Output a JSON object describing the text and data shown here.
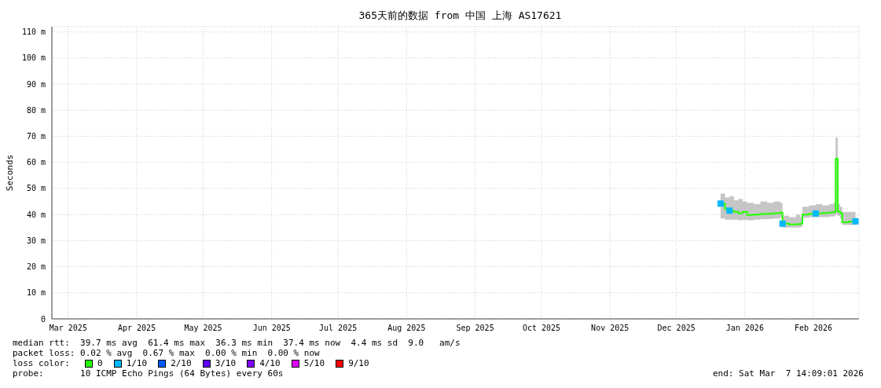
{
  "chart_data": {
    "type": "line",
    "title": "365天前的数据 from 中国 上海 AS17621",
    "ylabel": "Seconds",
    "xlim": [
      "2025-03-07T14:09",
      "2026-03-07T14:09"
    ],
    "xticks": [
      {
        "value": "2025-03-15",
        "label": "Mar 2025"
      },
      {
        "value": "2025-04-15",
        "label": "Apr 2025"
      },
      {
        "value": "2025-05-15",
        "label": "May 2025"
      },
      {
        "value": "2025-06-15",
        "label": "Jun 2025"
      },
      {
        "value": "2025-07-15",
        "label": "Jul 2025"
      },
      {
        "value": "2025-08-15",
        "label": "Aug 2025"
      },
      {
        "value": "2025-09-15",
        "label": "Sep 2025"
      },
      {
        "value": "2025-10-15",
        "label": "Oct 2025"
      },
      {
        "value": "2025-11-15",
        "label": "Nov 2025"
      },
      {
        "value": "2025-12-15",
        "label": "Dec 2025"
      },
      {
        "value": "2026-01-15",
        "label": "Jan 2026"
      },
      {
        "value": "2026-02-15",
        "label": "Feb 2026"
      }
    ],
    "ylim": [
      0,
      112
    ],
    "yticks": [
      0,
      {
        "value": 10,
        "label": "10 m"
      },
      {
        "value": 20,
        "label": "20 m"
      },
      {
        "value": 30,
        "label": "30 m"
      },
      {
        "value": 40,
        "label": "40 m"
      },
      {
        "value": 50,
        "label": "50 m"
      },
      {
        "value": 60,
        "label": "60 m"
      },
      {
        "value": 70,
        "label": "70 m"
      },
      {
        "value": 80,
        "label": "80 m"
      },
      {
        "value": 90,
        "label": "90 m"
      },
      {
        "value": 100,
        "label": "100 m"
      },
      {
        "value": 110,
        "label": "110 m"
      }
    ],
    "grid": true,
    "legend": "bottom",
    "legend_title": "loss color:",
    "marker": "none",
    "series": [
      {
        "name": "0",
        "color": "#26ff00",
        "x": [
          "2026-01-04",
          "2026-01-06",
          "2026-01-08",
          "2026-01-10",
          "2026-01-12",
          "2026-01-14",
          "2026-01-16",
          "2026-01-19",
          "2026-01-22",
          "2026-01-25",
          "2026-01-28",
          "2026-01-31",
          "2026-02-01",
          "2026-02-04",
          "2026-02-07",
          "2026-02-09",
          "2026-02-10",
          "2026-02-13",
          "2026-02-16",
          "2026-02-19",
          "2026-02-22",
          "2026-02-24",
          "2026-02-25",
          "2026-02-26",
          "2026-02-27",
          "2026-02-28",
          "2026-03-03",
          "2026-03-06"
        ],
        "values": [
          44.2,
          42,
          41.5,
          41,
          40.5,
          41,
          39.8,
          40,
          40.2,
          40.3,
          40.5,
          40.8,
          36.5,
          36.2,
          36.3,
          36.5,
          40,
          40.3,
          40.4,
          40.6,
          40.8,
          41,
          61.4,
          41.2,
          40.5,
          37,
          37.3,
          37.4
        ],
        "lower": [
          38.5,
          38,
          38,
          38,
          37.8,
          38,
          37.8,
          38,
          38.2,
          38.3,
          38.5,
          38.8,
          35,
          35,
          35,
          35.2,
          38.8,
          39,
          39,
          39,
          39.2,
          39.3,
          40,
          39.5,
          38.5,
          36,
          36,
          36
        ],
        "upper": [
          48,
          46.5,
          47,
          45.5,
          46,
          45,
          44.5,
          44,
          45,
          44.5,
          45,
          44.5,
          39.5,
          39,
          40,
          39,
          43,
          43.5,
          44,
          43.5,
          44,
          44.5,
          69.5,
          44,
          43,
          41,
          41,
          41
        ]
      },
      {
        "name": "1/10",
        "color": "#00b8ff",
        "type": "scatter",
        "marker": "square",
        "x": [
          "2026-01-04",
          "2026-01-08",
          "2026-02-01",
          "2026-02-16",
          "2026-03-06"
        ],
        "values": [
          44.2,
          41.5,
          36.5,
          40.4,
          37.4
        ]
      },
      {
        "name": "2/10",
        "color": "#0059ff"
      },
      {
        "name": "3/10",
        "color": "#5e00ff"
      },
      {
        "name": "4/10",
        "color": "#7e00ff"
      },
      {
        "name": "5/10",
        "color": "#dd00ff"
      },
      {
        "name": "9/10",
        "color": "#ff0000"
      }
    ],
    "annotations": [
      "median rtt:  39.7 ms avg  61.4 ms max  36.3 ms min  37.4 ms now  4.4 ms sd  9.0   am/s",
      "packet loss: 0.02 % avg  0.67 % max  0.00 % min  0.00 % now",
      "probe:       10 ICMP Echo Pings (64 Bytes) every 60s",
      "end: Sat Mar  7 14:09:01 2026"
    ]
  }
}
